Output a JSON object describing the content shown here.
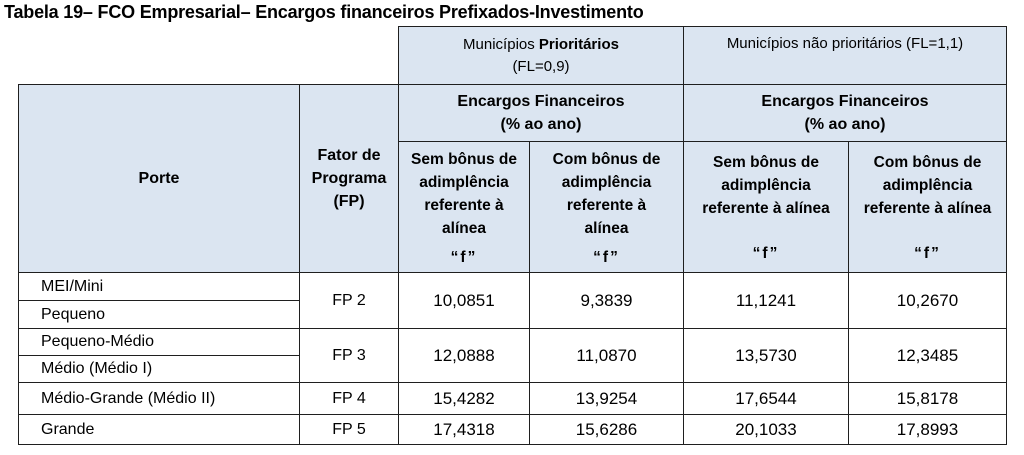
{
  "title": "Tabela 19– FCO Empresarial– Encargos financeiros  Prefixados-Investimento",
  "header": {
    "prioritarios_l1_a": "Municípios ",
    "prioritarios_l1_b": "Prioritários",
    "prioritarios_l2": "(FL=0,9)",
    "nao_prioritarios": "Municípios  não prioritários  (FL=1,1)",
    "porte": "Porte",
    "fator_l1": "Fator de",
    "fator_l2": "Programa",
    "fator_l3": "(FP)",
    "encargos_l1": "Encargos Financeiros",
    "encargos_l2": "(% ao ano)",
    "sem_bonus_pri": [
      "Sem bônus de",
      "adimplência",
      "referente à",
      "alínea"
    ],
    "com_bonus_pri": [
      "Com bônus de",
      "adimplência",
      "referente à",
      "alínea"
    ],
    "sem_bonus_nao": [
      "Sem  bônus de",
      "adimplência",
      "referente  à alínea"
    ],
    "com_bonus_nao": [
      "Com bônus de",
      "adimplência",
      "referente à alínea"
    ],
    "alinea_quote": "“f”"
  },
  "rows": [
    {
      "portes": [
        "MEI/Mini",
        "Pequeno"
      ],
      "fp": "FP 2",
      "values": [
        "10,0851",
        "9,3839",
        "11,1241",
        "10,2670"
      ]
    },
    {
      "portes": [
        "Pequeno-Médio",
        "Médio (Médio I)"
      ],
      "fp": "FP 3",
      "values": [
        "12,0888",
        "11,0870",
        "13,5730",
        "12,3485"
      ]
    },
    {
      "portes": [
        "Médio-Grande  (Médio  II)"
      ],
      "fp": "FP 4",
      "values": [
        "15,4282",
        "13,9254",
        "17,6544",
        "15,8178"
      ]
    },
    {
      "portes": [
        "Grande"
      ],
      "fp": "FP 5",
      "values": [
        "17,4318",
        "15,6286",
        "20,1033",
        "17,8993"
      ]
    }
  ]
}
